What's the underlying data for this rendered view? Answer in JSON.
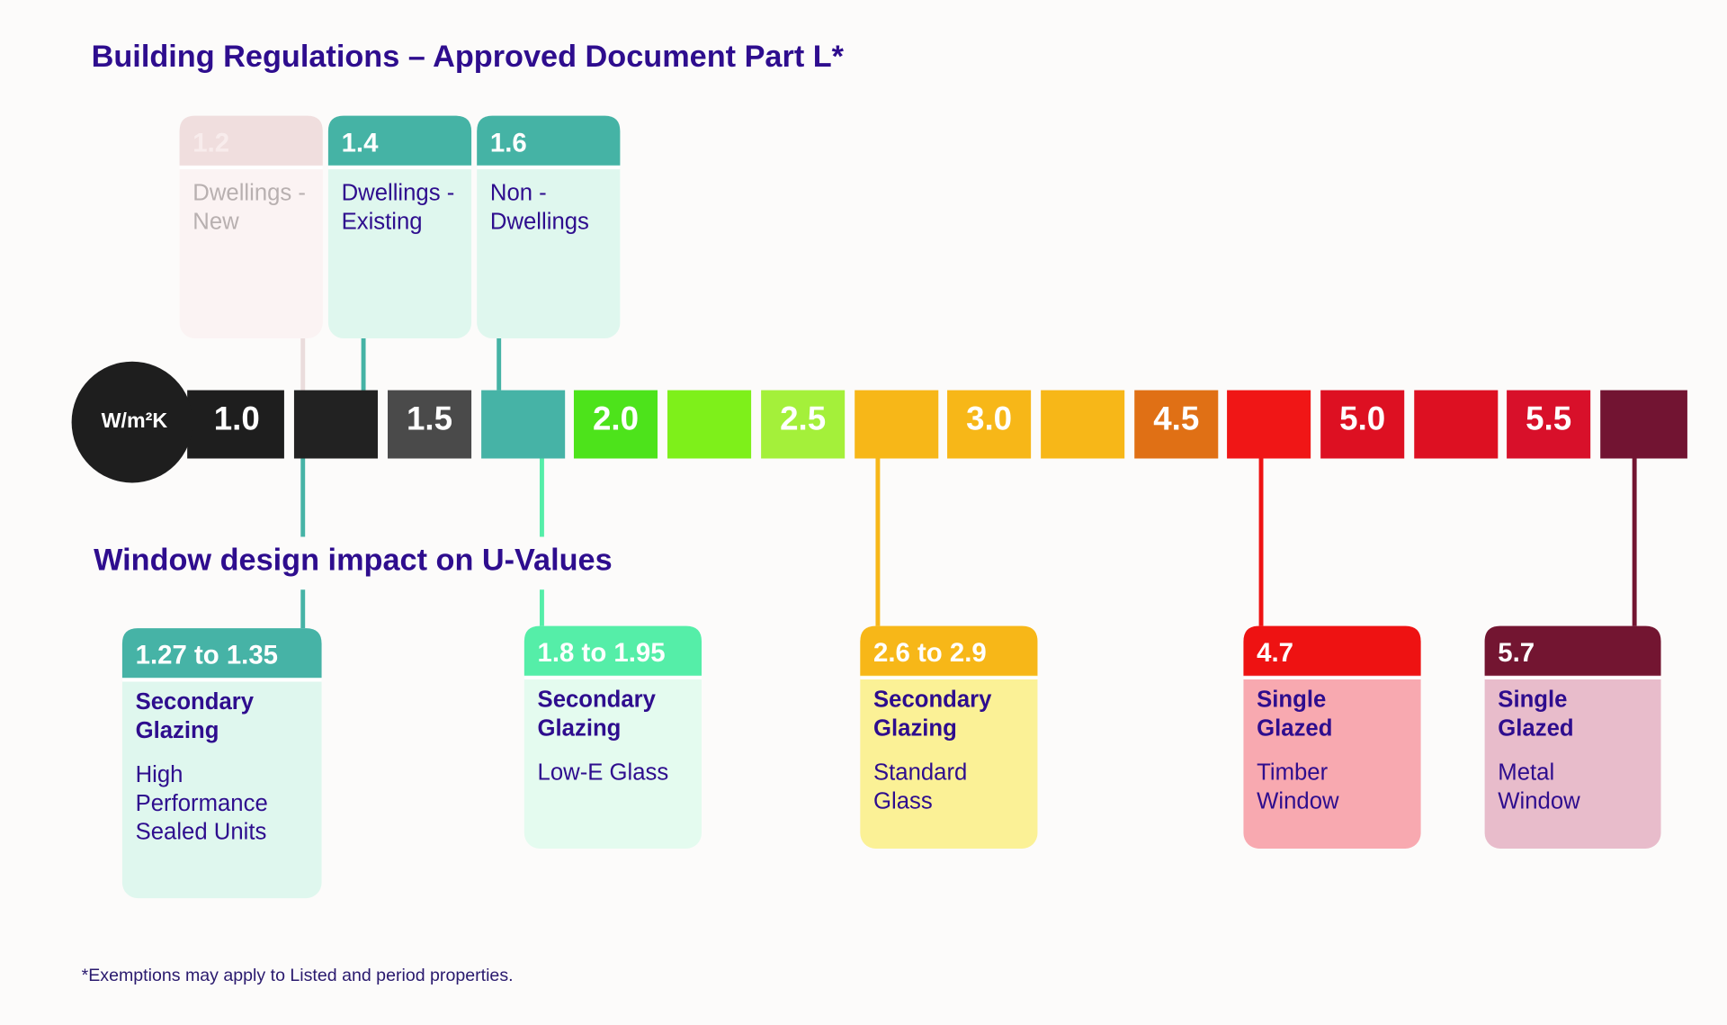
{
  "header": {
    "title": "Building Regulations – Approved Document Part L*"
  },
  "regulations": [
    {
      "value": "1.2",
      "label": [
        "Dwellings -",
        "New"
      ]
    },
    {
      "value": "1.4",
      "label": [
        "Dwellings -",
        "Existing"
      ]
    },
    {
      "value": "1.6",
      "label": [
        "Non -",
        "Dwellings"
      ]
    }
  ],
  "scale": {
    "unit": "W/m²K",
    "labels": [
      "1.0",
      "1.5",
      "2.0",
      "2.5",
      "3.0",
      "4.5",
      "5.0",
      "5.5"
    ]
  },
  "section_title": "Window design impact on U-Values",
  "windows": [
    {
      "value": "1.27 to 1.35",
      "title": [
        "Secondary",
        "Glazing"
      ],
      "detail": [
        "High",
        "Performance",
        "Sealed Units"
      ]
    },
    {
      "value": "1.8 to 1.95",
      "title": [
        "Secondary",
        "Glazing"
      ],
      "detail": [
        "Low-E Glass"
      ]
    },
    {
      "value": "2.6 to 2.9",
      "title": [
        "Secondary",
        "Glazing"
      ],
      "detail": [
        "Standard",
        "Glass"
      ]
    },
    {
      "value": "4.7",
      "title": [
        "Single",
        "Glazed"
      ],
      "detail": [
        "Timber",
        "Window"
      ]
    },
    {
      "value": "5.7",
      "title": [
        "Single",
        "Glazed"
      ],
      "detail": [
        "Metal",
        "Window"
      ]
    }
  ],
  "footnote": "*Exemptions may apply to Listed and period properties."
}
